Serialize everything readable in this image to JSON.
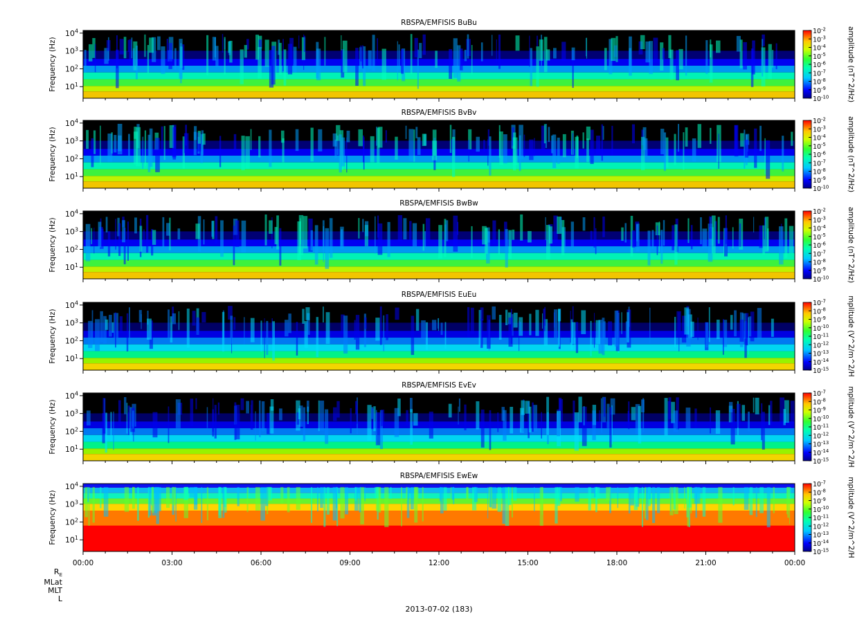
{
  "figure": {
    "date_label": "2013-07-02 (183)",
    "ephemeris_labels": [
      "R",
      "MLat",
      "MLT",
      "L"
    ],
    "ephemeris_subscript": "E"
  },
  "chart_data": [
    {
      "type": "heatmap",
      "title": "RBSPA/EMFISIS  BuBu",
      "ylabel": "Frequency (Hz)",
      "yscale": "log",
      "y_ticks": [
        "10^1",
        "10^2",
        "10^3",
        "10^4"
      ],
      "x_ticks": [
        "00:00",
        "03:00",
        "06:00",
        "09:00",
        "12:00",
        "15:00",
        "18:00",
        "21:00",
        "00:00"
      ],
      "colorbar": {
        "label": "amplitude (nT^2/Hz)",
        "scale": "log",
        "range_exp": [
          -10,
          -2
        ],
        "ticks": [
          "10^-2",
          "10^-3",
          "10^-4",
          "10^-5",
          "10^-6",
          "10^-7",
          "10^-8",
          "10^-9",
          "10^-10"
        ]
      }
    },
    {
      "type": "heatmap",
      "title": "RBSPA/EMFISIS  BvBv",
      "ylabel": "Frequency (Hz)",
      "yscale": "log",
      "y_ticks": [
        "10^1",
        "10^2",
        "10^3",
        "10^4"
      ],
      "x_ticks": [
        "00:00",
        "03:00",
        "06:00",
        "09:00",
        "12:00",
        "15:00",
        "18:00",
        "21:00",
        "00:00"
      ],
      "colorbar": {
        "label": "amplitude (nT^2/Hz)",
        "scale": "log",
        "range_exp": [
          -10,
          -2
        ],
        "ticks": [
          "10^-2",
          "10^-3",
          "10^-4",
          "10^-5",
          "10^-6",
          "10^-7",
          "10^-8",
          "10^-9",
          "10^-10"
        ]
      }
    },
    {
      "type": "heatmap",
      "title": "RBSPA/EMFISIS  BwBw",
      "ylabel": "Frequency (Hz)",
      "yscale": "log",
      "y_ticks": [
        "10^1",
        "10^2",
        "10^3",
        "10^4"
      ],
      "x_ticks": [
        "00:00",
        "03:00",
        "06:00",
        "09:00",
        "12:00",
        "15:00",
        "18:00",
        "21:00",
        "00:00"
      ],
      "colorbar": {
        "label": "amplitude (nT^2/Hz)",
        "scale": "log",
        "range_exp": [
          -10,
          -2
        ],
        "ticks": [
          "10^-2",
          "10^-3",
          "10^-4",
          "10^-5",
          "10^-6",
          "10^-7",
          "10^-8",
          "10^-9",
          "10^-10"
        ]
      }
    },
    {
      "type": "heatmap",
      "title": "RBSPA/EMFISIS  EuEu",
      "ylabel": "Frequency (Hz)",
      "yscale": "log",
      "y_ticks": [
        "10^1",
        "10^2",
        "10^3",
        "10^4"
      ],
      "x_ticks": [
        "00:00",
        "03:00",
        "06:00",
        "09:00",
        "12:00",
        "15:00",
        "18:00",
        "21:00",
        "00:00"
      ],
      "colorbar": {
        "label": "mplitude (V^2/m^2/H",
        "scale": "log",
        "range_exp": [
          -15,
          -7
        ],
        "ticks": [
          "10^-7",
          "10^-8",
          "10^-9",
          "10^-10",
          "10^-11",
          "10^-12",
          "10^-13",
          "10^-14",
          "10^-15"
        ]
      }
    },
    {
      "type": "heatmap",
      "title": "RBSPA/EMFISIS  EvEv",
      "ylabel": "Frequency (Hz)",
      "yscale": "log",
      "y_ticks": [
        "10^1",
        "10^2",
        "10^3",
        "10^4"
      ],
      "x_ticks": [
        "00:00",
        "03:00",
        "06:00",
        "09:00",
        "12:00",
        "15:00",
        "18:00",
        "21:00",
        "00:00"
      ],
      "colorbar": {
        "label": "mplitude (V^2/m^2/H",
        "scale": "log",
        "range_exp": [
          -15,
          -7
        ],
        "ticks": [
          "10^-7",
          "10^-8",
          "10^-9",
          "10^-10",
          "10^-11",
          "10^-12",
          "10^-13",
          "10^-14",
          "10^-15"
        ]
      }
    },
    {
      "type": "heatmap",
      "title": "RBSPA/EMFISIS  EwEw",
      "ylabel": "Frequency (Hz)",
      "yscale": "log",
      "y_ticks": [
        "10^1",
        "10^2",
        "10^3",
        "10^4"
      ],
      "x_ticks": [
        "00:00",
        "03:00",
        "06:00",
        "09:00",
        "12:00",
        "15:00",
        "18:00",
        "21:00",
        "00:00"
      ],
      "colorbar": {
        "label": "mplitude (V^2/m^2/H",
        "scale": "log",
        "range_exp": [
          -15,
          -7
        ],
        "ticks": [
          "10^-7",
          "10^-8",
          "10^-9",
          "10^-10",
          "10^-11",
          "10^-12",
          "10^-13",
          "10^-14",
          "10^-15"
        ]
      }
    }
  ]
}
